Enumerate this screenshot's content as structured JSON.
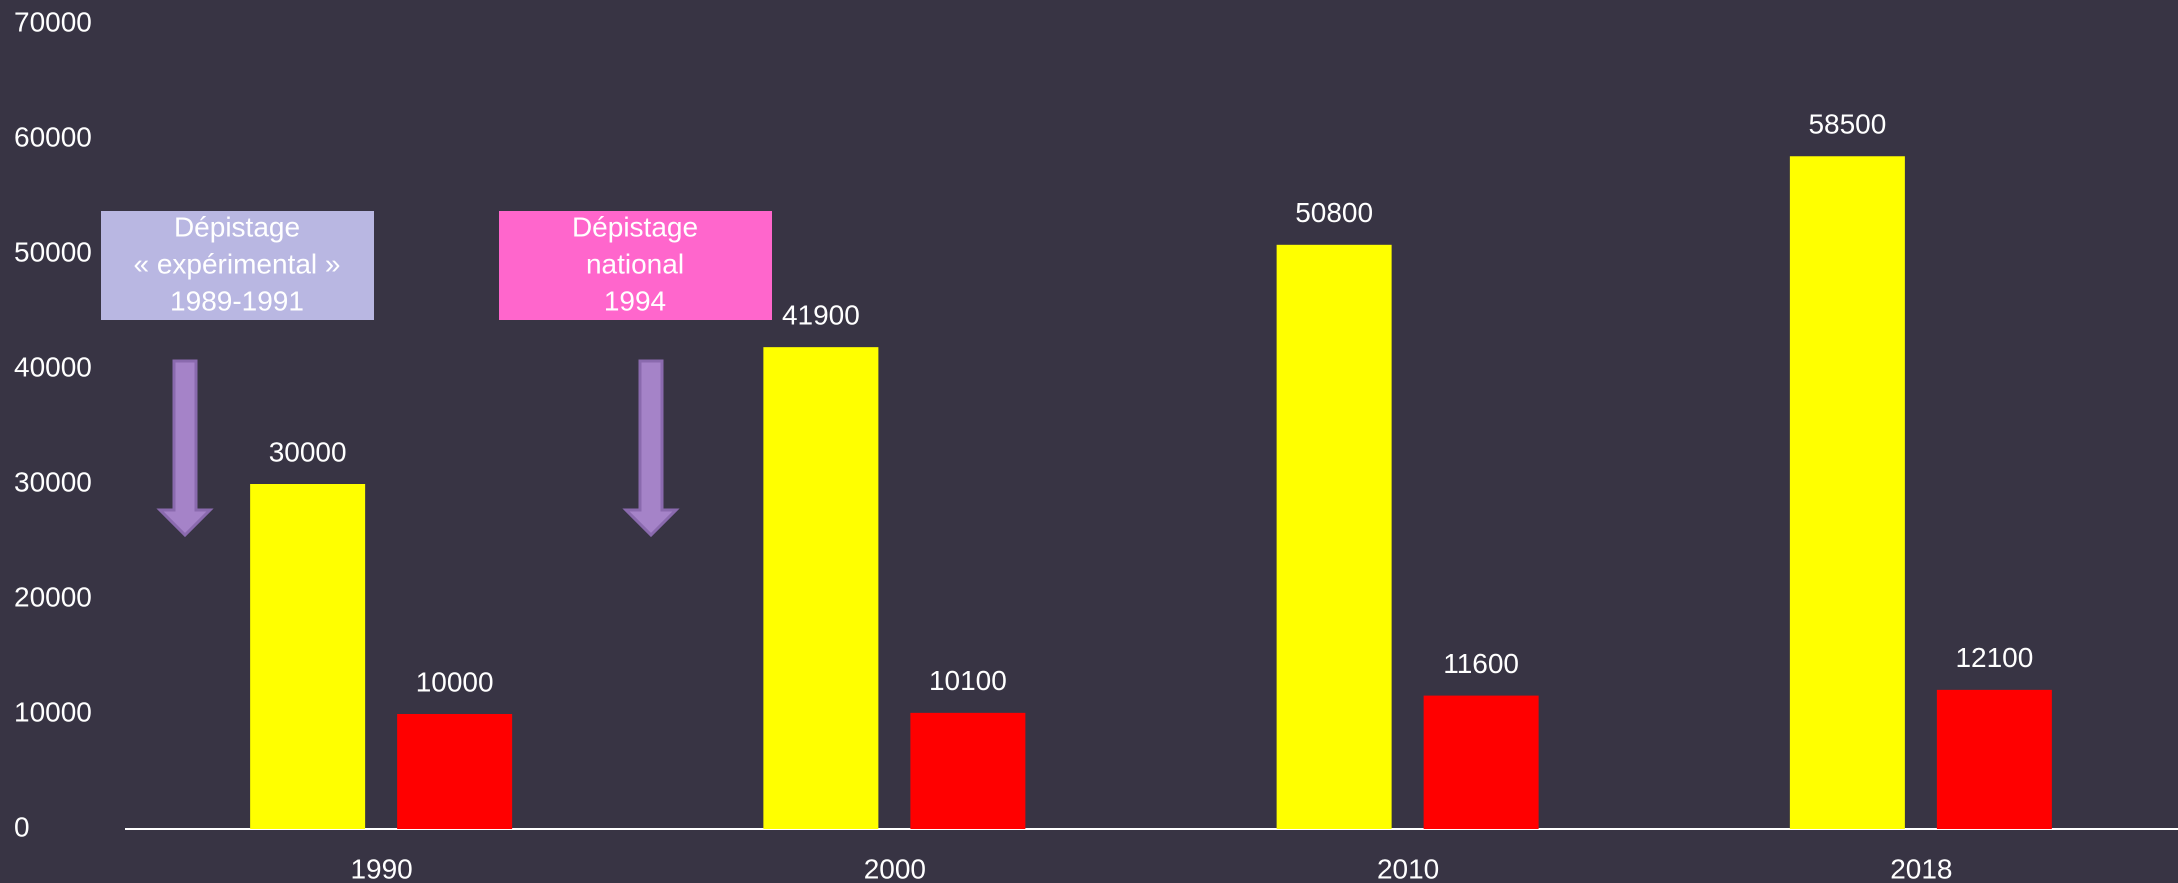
{
  "chart_data": {
    "type": "bar",
    "categories": [
      "1990",
      "2000",
      "2010",
      "2018"
    ],
    "series": [
      {
        "color": "#ffff00",
        "values": [
          30000,
          41900,
          50800,
          58500
        ]
      },
      {
        "color": "#ff0000",
        "values": [
          10000,
          10100,
          11600,
          12100
        ]
      }
    ],
    "ylim": [
      0,
      70000
    ],
    "yticks": [
      0,
      10000,
      20000,
      30000,
      40000,
      50000,
      60000,
      70000
    ],
    "annotations": [
      {
        "lines": [
          "Dépistage",
          "« expérimental »",
          "1989-1991"
        ],
        "color": "#b9b7e2"
      },
      {
        "lines": [
          "Dépistage",
          "national",
          "1994"
        ],
        "color": "#ff66cc"
      }
    ]
  }
}
